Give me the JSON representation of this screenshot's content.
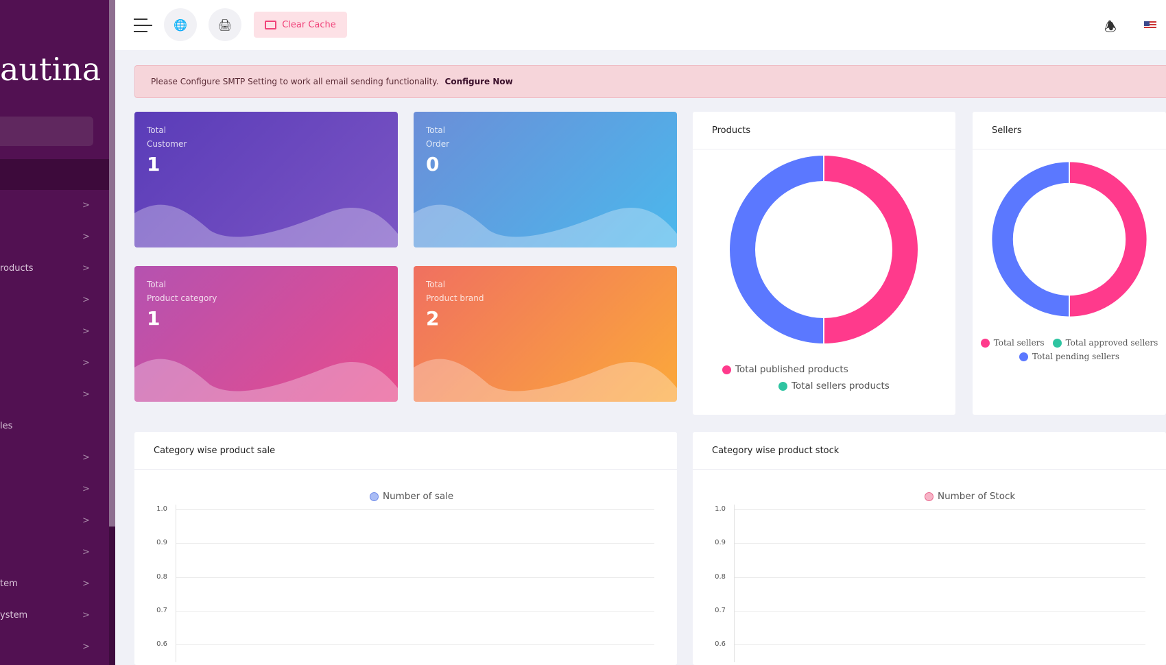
{
  "sidebar": {
    "logo": "autina",
    "items": [
      {
        "label": "",
        "chev": ">"
      },
      {
        "label": "",
        "chev": ">"
      },
      {
        "label": "roducts",
        "chev": ">"
      },
      {
        "label": "",
        "chev": ">"
      },
      {
        "label": "",
        "chev": ">"
      },
      {
        "label": "",
        "chev": ">"
      },
      {
        "label": "",
        "chev": ">"
      },
      {
        "label": "les",
        "chev": ""
      },
      {
        "label": "",
        "chev": ">"
      },
      {
        "label": "",
        "chev": ">"
      },
      {
        "label": "",
        "chev": ">"
      },
      {
        "label": "",
        "chev": ">"
      },
      {
        "label": "tem",
        "chev": ">"
      },
      {
        "label": "ystem",
        "chev": ">"
      },
      {
        "label": "",
        "chev": ">"
      }
    ]
  },
  "header": {
    "clear_cache": "Clear Cache",
    "icons": [
      "menu-icon",
      "globe-icon",
      "print-icon",
      "bell-icon",
      "us-flag-icon"
    ]
  },
  "alert": {
    "text": "Please Configure SMTP Setting to work all email sending functionality.",
    "link": "Configure Now"
  },
  "cards": [
    {
      "l1": "Total",
      "l2": "Customer",
      "value": "1"
    },
    {
      "l1": "Total",
      "l2": "Order",
      "value": "0"
    },
    {
      "l1": "Total",
      "l2": "Product category",
      "value": "1"
    },
    {
      "l1": "Total",
      "l2": "Product brand",
      "value": "2"
    }
  ],
  "chart_data": [
    {
      "type": "pie",
      "title": "Products",
      "slices": [
        {
          "label": "Total published products",
          "value": 50,
          "color": "#ff3a8c"
        },
        {
          "label": "Total sellers products",
          "value": 0,
          "color": "#2ec4a1"
        },
        {
          "label": "",
          "value": 50,
          "color": "#5b78ff"
        }
      ]
    },
    {
      "type": "pie",
      "title": "Sellers",
      "slices": [
        {
          "label": "Total sellers",
          "value": 50,
          "color": "#ff3a8c"
        },
        {
          "label": "Total approved sellers",
          "value": 0,
          "color": "#2ec4a1"
        },
        {
          "label": "Total pending sellers",
          "value": 50,
          "color": "#5b78ff"
        }
      ]
    },
    {
      "type": "bar",
      "title": "Category wise product sale",
      "series": [
        {
          "name": "Number of sale",
          "values": []
        }
      ],
      "yticks": [
        "1.0",
        "0.9",
        "0.8",
        "0.7",
        "0.6"
      ],
      "legend": "top"
    },
    {
      "type": "bar",
      "title": "Category wise product stock",
      "series": [
        {
          "name": "Number of Stock",
          "values": []
        }
      ],
      "yticks": [
        "1.0",
        "0.9",
        "0.8",
        "0.7",
        "0.6"
      ],
      "legend": "top"
    }
  ]
}
